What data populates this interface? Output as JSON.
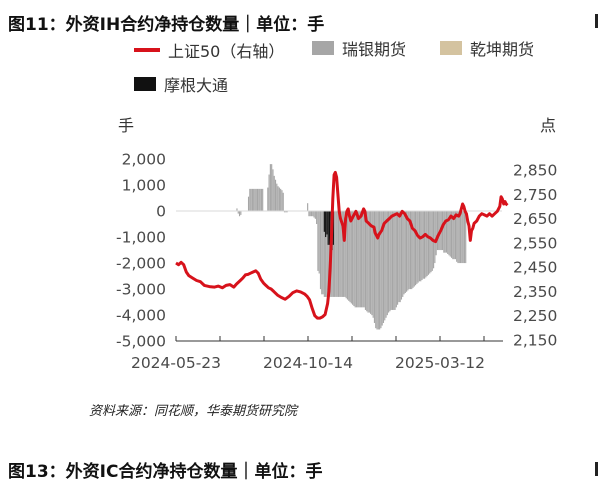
{
  "figure1": {
    "title": "图11：外资IH合约净持仓数量｜单位：手",
    "source": "资料来源：同花顺，华泰期货研究院"
  },
  "figure2": {
    "title": "图13：外资IC合约净持仓数量｜单位：手"
  },
  "colors": {
    "line": "#d7121b",
    "ruiyin": "#a6a6a6",
    "qiankun": "#d4c3a0",
    "moshen": "#111111"
  },
  "chart_data": {
    "type": "bar+line",
    "left_axis": {
      "unit": "手",
      "range": [
        -5000,
        2000
      ],
      "ticks": [
        "2,000",
        "1,000",
        "0",
        "-1,000",
        "-2,000",
        "-3,000",
        "-4,000",
        "-5,000"
      ]
    },
    "right_axis": {
      "unit": "点",
      "range": [
        2150,
        2850
      ],
      "ticks": [
        "2,850",
        "2,750",
        "2,650",
        "2,550",
        "2,450",
        "2,350",
        "2,250",
        "2,150"
      ]
    },
    "x_ticks": [
      "2024-05-23",
      "2024-10-14",
      "2025-03-12"
    ],
    "legend": [
      "上证50（右轴）",
      "瑞银期货",
      "乾坤期货",
      "摩根大通"
    ],
    "series": [
      {
        "name": "瑞银期货",
        "type": "bar",
        "axis": "left",
        "points": [
          [
            47,
            100
          ],
          [
            48,
            -100
          ],
          [
            49,
            -200
          ],
          [
            50,
            -150
          ],
          [
            56,
            550
          ],
          [
            57,
            850
          ],
          [
            58,
            850
          ],
          [
            59,
            850
          ],
          [
            60,
            850
          ],
          [
            61,
            850
          ],
          [
            62,
            850
          ],
          [
            63,
            850
          ],
          [
            64,
            850
          ],
          [
            65,
            850
          ],
          [
            66,
            850
          ],
          [
            67,
            850
          ],
          [
            71,
            900
          ],
          [
            72,
            1400
          ],
          [
            73,
            1800
          ],
          [
            74,
            1800
          ],
          [
            75,
            1600
          ],
          [
            76,
            1350
          ],
          [
            77,
            1200
          ],
          [
            78,
            1050
          ],
          [
            79,
            950
          ],
          [
            80,
            900
          ],
          [
            81,
            850
          ],
          [
            82,
            800
          ],
          [
            83,
            700
          ],
          [
            84,
            -50
          ],
          [
            85,
            -50
          ],
          [
            86,
            -50
          ],
          [
            102,
            300
          ],
          [
            103,
            -200
          ],
          [
            104,
            -200
          ],
          [
            105,
            -200
          ],
          [
            106,
            -200
          ],
          [
            107,
            -250
          ],
          [
            108,
            -300
          ],
          [
            109,
            -500
          ],
          [
            110,
            -2300
          ],
          [
            111,
            -2400
          ],
          [
            112,
            -3000
          ],
          [
            113,
            -3200
          ],
          [
            114,
            -3200
          ],
          [
            115,
            -3300
          ],
          [
            116,
            -3300
          ],
          [
            117,
            -3300
          ],
          [
            118,
            -3300
          ],
          [
            119,
            -3300
          ],
          [
            120,
            -3300
          ],
          [
            121,
            -3300
          ],
          [
            122,
            -3300
          ],
          [
            123,
            -3300
          ],
          [
            124,
            -3300
          ],
          [
            125,
            -3300
          ],
          [
            126,
            -3300
          ],
          [
            127,
            -3300
          ],
          [
            128,
            -3300
          ],
          [
            129,
            -3300
          ],
          [
            130,
            -3300
          ],
          [
            131,
            -3300
          ],
          [
            132,
            -3350
          ],
          [
            133,
            -3400
          ],
          [
            134,
            -3450
          ],
          [
            135,
            -3500
          ],
          [
            136,
            -3550
          ],
          [
            137,
            -3600
          ],
          [
            138,
            -3650
          ],
          [
            139,
            -3700
          ],
          [
            140,
            -3700
          ],
          [
            141,
            -3700
          ],
          [
            142,
            -3700
          ],
          [
            143,
            -3700
          ],
          [
            144,
            -3700
          ],
          [
            145,
            -3700
          ],
          [
            146,
            -3700
          ],
          [
            147,
            -3800
          ],
          [
            148,
            -3850
          ],
          [
            149,
            -3900
          ],
          [
            150,
            -3900
          ],
          [
            151,
            -3950
          ],
          [
            152,
            -4000
          ],
          [
            153,
            -4100
          ],
          [
            154,
            -4300
          ],
          [
            155,
            -4500
          ],
          [
            156,
            -4550
          ],
          [
            157,
            -4550
          ],
          [
            158,
            -4550
          ],
          [
            159,
            -4500
          ],
          [
            160,
            -4400
          ],
          [
            161,
            -4300
          ],
          [
            162,
            -4200
          ],
          [
            163,
            -4100
          ],
          [
            164,
            -4000
          ],
          [
            165,
            -3900
          ],
          [
            166,
            -3850
          ],
          [
            167,
            -3800
          ],
          [
            168,
            -3800
          ],
          [
            169,
            -3800
          ],
          [
            170,
            -3800
          ],
          [
            171,
            -3700
          ],
          [
            172,
            -3600
          ],
          [
            173,
            -3500
          ],
          [
            174,
            -3500
          ],
          [
            175,
            -3400
          ],
          [
            176,
            -3300
          ],
          [
            177,
            -3200
          ],
          [
            178,
            -3150
          ],
          [
            179,
            -3100
          ],
          [
            180,
            -3050
          ],
          [
            181,
            -3000
          ],
          [
            182,
            -3000
          ],
          [
            183,
            -3000
          ],
          [
            184,
            -2950
          ],
          [
            185,
            -2900
          ],
          [
            186,
            -2850
          ],
          [
            187,
            -2800
          ],
          [
            188,
            -2750
          ],
          [
            189,
            -2700
          ],
          [
            190,
            -2700
          ],
          [
            191,
            -2650
          ],
          [
            192,
            -2600
          ],
          [
            193,
            -2600
          ],
          [
            194,
            -2550
          ],
          [
            195,
            -2500
          ],
          [
            196,
            -2450
          ],
          [
            197,
            -2400
          ],
          [
            198,
            -2350
          ],
          [
            199,
            -2300
          ],
          [
            200,
            -2200
          ],
          [
            201,
            -2000
          ],
          [
            202,
            -1700
          ],
          [
            203,
            -1500
          ],
          [
            204,
            -1500
          ],
          [
            205,
            -1500
          ],
          [
            206,
            -1500
          ],
          [
            207,
            -1500
          ],
          [
            208,
            -1600
          ],
          [
            209,
            -1600
          ],
          [
            210,
            -1600
          ],
          [
            211,
            -1650
          ],
          [
            212,
            -1700
          ],
          [
            213,
            -1750
          ],
          [
            214,
            -1800
          ],
          [
            215,
            -1850
          ],
          [
            216,
            -1850
          ],
          [
            217,
            -1850
          ],
          [
            218,
            -1950
          ],
          [
            219,
            -2000
          ],
          [
            220,
            -2000
          ],
          [
            221,
            -2000
          ],
          [
            222,
            -2000
          ],
          [
            223,
            -2000
          ],
          [
            224,
            -2000
          ],
          [
            225,
            -2000
          ]
        ]
      },
      {
        "name": "乾坤期货",
        "type": "bar",
        "axis": "left",
        "points": []
      },
      {
        "name": "摩根大通",
        "type": "bar",
        "axis": "left",
        "points": [
          [
            115,
            -800
          ],
          [
            116,
            -1000
          ],
          [
            117,
            -900
          ],
          [
            118,
            -1300
          ],
          [
            119,
            -1300
          ],
          [
            120,
            -1500
          ],
          [
            121,
            -1500
          ],
          [
            122,
            -1300
          ]
        ]
      },
      {
        "name": "上证50（右轴）",
        "type": "line",
        "axis": "right",
        "points": [
          [
            0,
            2467
          ],
          [
            2,
            2460
          ],
          [
            4,
            2470
          ],
          [
            6,
            2460
          ],
          [
            8,
            2430
          ],
          [
            10,
            2415
          ],
          [
            13,
            2405
          ],
          [
            16,
            2395
          ],
          [
            19,
            2390
          ],
          [
            22,
            2375
          ],
          [
            26,
            2370
          ],
          [
            30,
            2368
          ],
          [
            33,
            2372
          ],
          [
            36,
            2365
          ],
          [
            39,
            2375
          ],
          [
            42,
            2378
          ],
          [
            45,
            2368
          ],
          [
            47,
            2380
          ],
          [
            50,
            2395
          ],
          [
            52,
            2405
          ],
          [
            54,
            2418
          ],
          [
            56,
            2420
          ],
          [
            58,
            2425
          ],
          [
            60,
            2430
          ],
          [
            62,
            2435
          ],
          [
            64,
            2425
          ],
          [
            66,
            2400
          ],
          [
            68,
            2385
          ],
          [
            70,
            2375
          ],
          [
            72,
            2365
          ],
          [
            74,
            2360
          ],
          [
            76,
            2350
          ],
          [
            79,
            2335
          ],
          [
            82,
            2325
          ],
          [
            85,
            2318
          ],
          [
            88,
            2330
          ],
          [
            91,
            2345
          ],
          [
            94,
            2352
          ],
          [
            97,
            2348
          ],
          [
            100,
            2340
          ],
          [
            102,
            2330
          ],
          [
            104,
            2315
          ],
          [
            106,
            2280
          ],
          [
            108,
            2250
          ],
          [
            110,
            2240
          ],
          [
            112,
            2240
          ],
          [
            114,
            2245
          ],
          [
            116,
            2255
          ],
          [
            118,
            2300
          ],
          [
            119,
            2350
          ],
          [
            120,
            2450
          ],
          [
            121,
            2580
          ],
          [
            122,
            2730
          ],
          [
            123,
            2830
          ],
          [
            124,
            2840
          ],
          [
            125,
            2820
          ],
          [
            126,
            2750
          ],
          [
            127,
            2680
          ],
          [
            128,
            2650
          ],
          [
            130,
            2620
          ],
          [
            131,
            2560
          ],
          [
            132,
            2650
          ],
          [
            133,
            2680
          ],
          [
            134,
            2690
          ],
          [
            135,
            2660
          ],
          [
            136,
            2640
          ],
          [
            138,
            2660
          ],
          [
            140,
            2680
          ],
          [
            141,
            2665
          ],
          [
            142,
            2650
          ],
          [
            144,
            2660
          ],
          [
            146,
            2690
          ],
          [
            147,
            2680
          ],
          [
            148,
            2640
          ],
          [
            150,
            2630
          ],
          [
            152,
            2620
          ],
          [
            154,
            2615
          ],
          [
            155,
            2590
          ],
          [
            156,
            2580
          ],
          [
            157,
            2570
          ],
          [
            158,
            2585
          ],
          [
            160,
            2600
          ],
          [
            162,
            2630
          ],
          [
            164,
            2640
          ],
          [
            166,
            2650
          ],
          [
            168,
            2660
          ],
          [
            170,
            2665
          ],
          [
            172,
            2670
          ],
          [
            174,
            2660
          ],
          [
            176,
            2680
          ],
          [
            178,
            2670
          ],
          [
            180,
            2650
          ],
          [
            182,
            2640
          ],
          [
            184,
            2610
          ],
          [
            186,
            2600
          ],
          [
            188,
            2580
          ],
          [
            190,
            2570
          ],
          [
            192,
            2575
          ],
          [
            194,
            2585
          ],
          [
            196,
            2575
          ],
          [
            198,
            2570
          ],
          [
            200,
            2560
          ],
          [
            202,
            2555
          ],
          [
            204,
            2580
          ],
          [
            206,
            2600
          ],
          [
            208,
            2625
          ],
          [
            210,
            2640
          ],
          [
            212,
            2645
          ],
          [
            214,
            2660
          ],
          [
            216,
            2650
          ],
          [
            218,
            2665
          ],
          [
            220,
            2660
          ],
          [
            221,
            2670
          ],
          [
            222,
            2690
          ],
          [
            223,
            2710
          ],
          [
            224,
            2700
          ],
          [
            225,
            2680
          ],
          [
            226,
            2670
          ],
          [
            227,
            2640
          ],
          [
            228,
            2620
          ],
          [
            229,
            2560
          ],
          [
            230,
            2600
          ],
          [
            231,
            2610
          ],
          [
            232,
            2630
          ],
          [
            234,
            2640
          ],
          [
            236,
            2660
          ],
          [
            238,
            2670
          ],
          [
            240,
            2665
          ],
          [
            242,
            2660
          ],
          [
            244,
            2670
          ],
          [
            246,
            2660
          ],
          [
            248,
            2670
          ],
          [
            250,
            2680
          ],
          [
            252,
            2700
          ],
          [
            253,
            2740
          ],
          [
            254,
            2730
          ],
          [
            255,
            2710
          ],
          [
            256,
            2720
          ],
          [
            257,
            2710
          ],
          [
            258,
            2705
          ]
        ]
      }
    ]
  }
}
